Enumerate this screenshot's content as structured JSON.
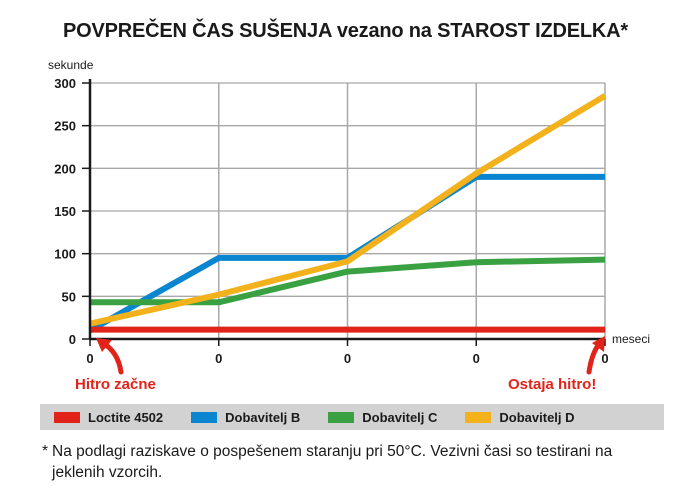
{
  "chart_data": {
    "type": "line",
    "title": "POVPREČEN ČAS SUŠENJA vezano na STAROST IZDELKA*",
    "ylabel": "sekunde",
    "xlabel": "meseci",
    "ylim": [
      0,
      300
    ],
    "yticks": [
      "0",
      "50",
      "100",
      "150",
      "200",
      "250",
      "300"
    ],
    "x": [
      0,
      1,
      2,
      3,
      4
    ],
    "xtick_labels": [
      "0",
      "0",
      "0",
      "0",
      "0"
    ],
    "grid": true,
    "series": [
      {
        "name": "Loctite 4502",
        "color": "#e2231a",
        "values": [
          11,
          11,
          11,
          11,
          11
        ]
      },
      {
        "name": "Dobavitelj B",
        "color": "#0a85cf",
        "values": [
          10,
          95,
          95,
          190,
          190
        ]
      },
      {
        "name": "Dobavitelj C",
        "color": "#3aa143",
        "values": [
          43,
          43,
          79,
          90,
          93
        ]
      },
      {
        "name": "Dobavitelj D",
        "color": "#f3b21c",
        "values": [
          18,
          52,
          91,
          194,
          285
        ]
      }
    ],
    "annotations": [
      {
        "text": "Hitro začne",
        "color": "#e2231a"
      },
      {
        "text": "Ostaja hitro!",
        "color": "#e2231a"
      }
    ],
    "legend_position": "bottom"
  },
  "footnote": {
    "star": "*",
    "text": "Na podlagi raziskave o pospešenem staranju  pri 50°C. Vezivni časi so testirani na jeklenih vzorcih."
  },
  "colors": {
    "axis": "#1a1a1a",
    "grid": "#a8a8a8",
    "legend_bg": "#d2d2d2",
    "accent_red": "#e2231a"
  }
}
